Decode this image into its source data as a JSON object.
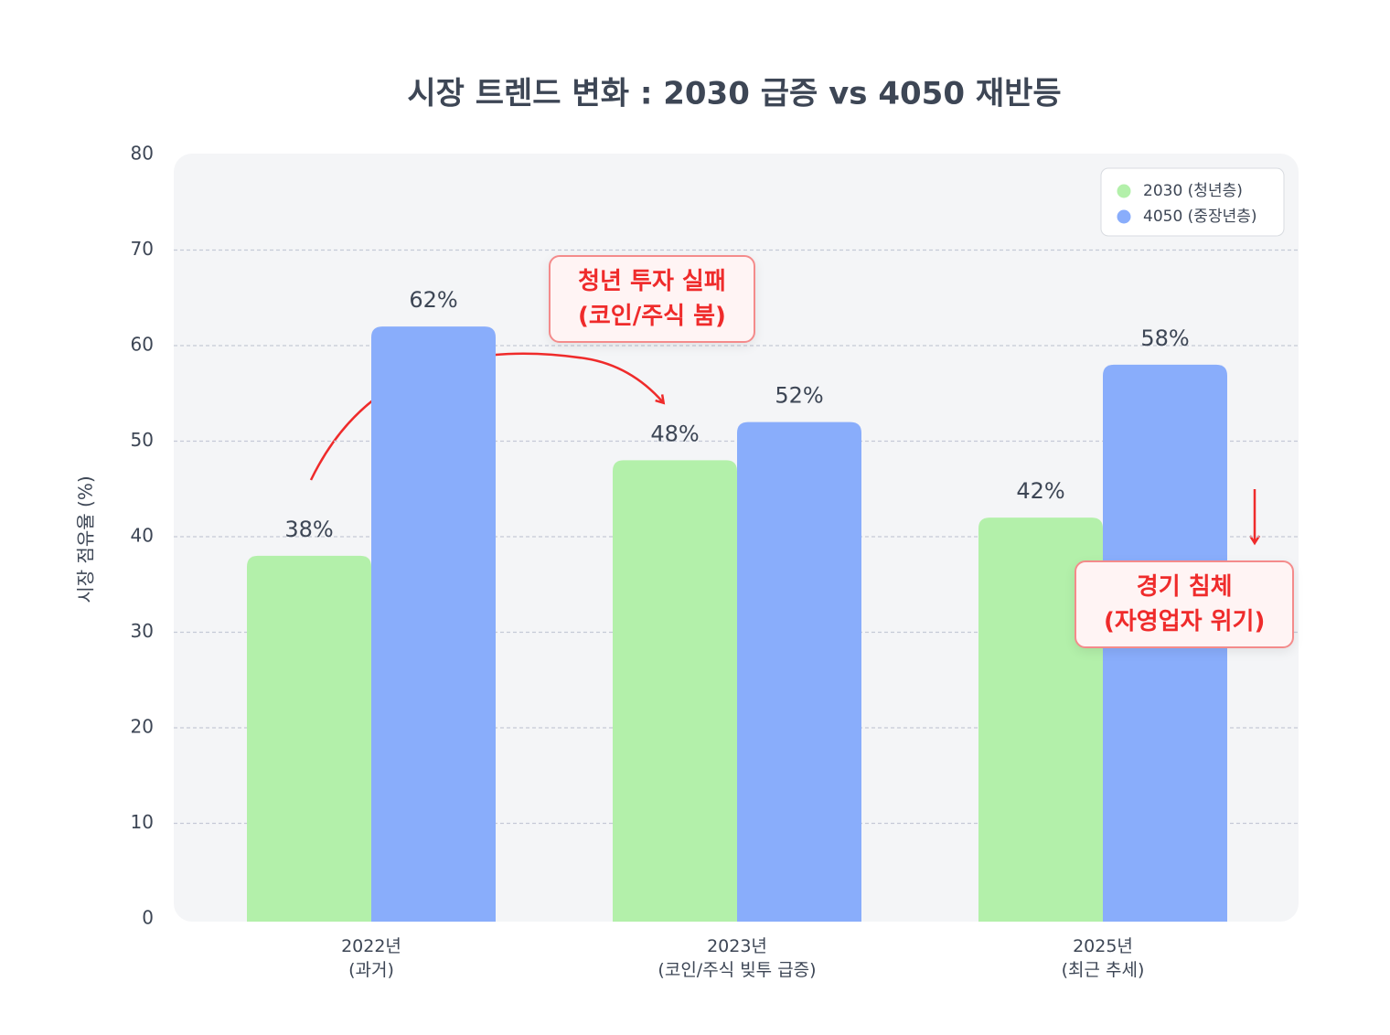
{
  "chart_data": {
    "type": "bar",
    "title": "시장 트렌드 변화 : 2030 급증 vs 4050 재반등",
    "y_label": "시장 점유율 (%)",
    "categories": [
      "2022년\n(과거)",
      "2023년\n(코인/주식 빚투 급증)",
      "2025년\n(최근 추세)"
    ],
    "series": [
      {
        "name": "2030 (청년층)",
        "color": "#b3f0aa",
        "values": [
          38,
          48,
          42
        ],
        "value_labels": [
          "38%",
          "48%",
          "42%"
        ]
      },
      {
        "name": "4050 (중장년층)",
        "color": "#89adfb",
        "values": [
          62,
          52,
          58
        ],
        "value_labels": [
          "62%",
          "52%",
          "58%"
        ]
      }
    ],
    "ylim": [
      0,
      80
    ],
    "yticks": [
      0,
      10,
      20,
      30,
      40,
      50,
      60,
      70,
      80
    ],
    "grid": true,
    "legend": "upper right",
    "annotations": [
      {
        "text": "청년 투자 실패\n(코인/주식 붐)"
      },
      {
        "text": "경기 침체\n(자영업자 위기)"
      }
    ]
  }
}
